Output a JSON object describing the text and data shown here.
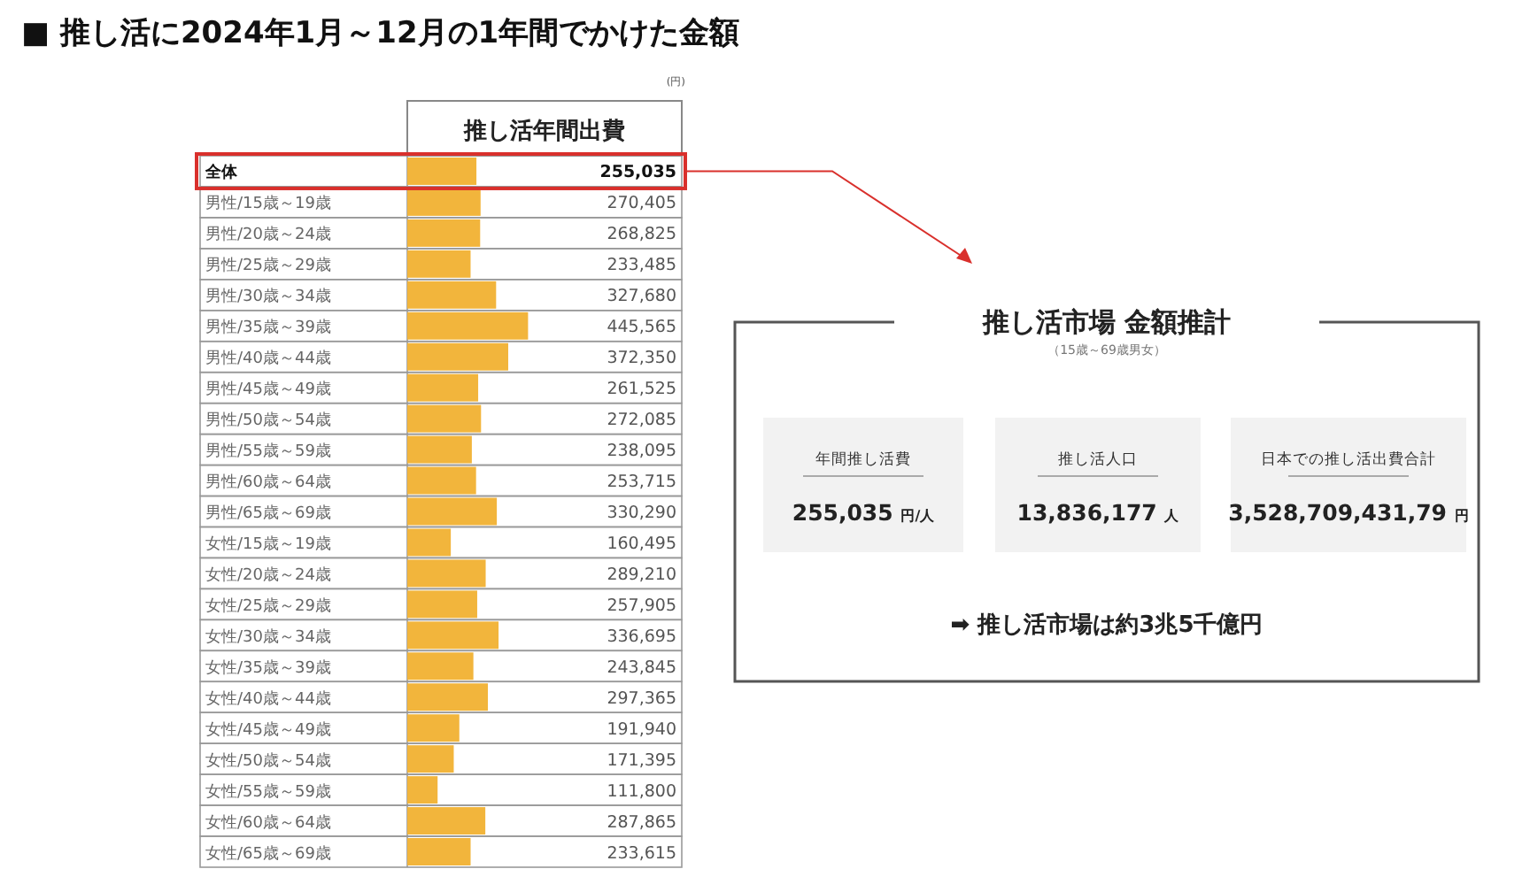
{
  "chart_data": [
    {
      "type": "bar",
      "orientation": "horizontal",
      "title": "■ 推し活に2024年1月～12月の1年間でかけた金額",
      "xlabel": "推し活年間出費",
      "annotations": [
        "(円)"
      ],
      "color": "#f2b53c",
      "value_labels": [
        "255,035",
        "270,405",
        "268,825",
        "233,485",
        "327,680",
        "445,565",
        "372,350",
        "261,525",
        "272,085",
        "238,095",
        "253,715",
        "330,290",
        "160,495",
        "289,210",
        "257,905",
        "336,695",
        "243,845",
        "297,365",
        "191,940",
        "171,395",
        "111,800",
        "287,865",
        "233,615"
      ],
      "categories": [
        "全体",
        "男性/15歳～19歳",
        "男性/20歳～24歳",
        "男性/25歳～29歳",
        "男性/30歳～34歳",
        "男性/35歳～39歳",
        "男性/40歳～44歳",
        "男性/45歳～49歳",
        "男性/50歳～54歳",
        "男性/55歳～59歳",
        "男性/60歳～64歳",
        "男性/65歳～69歳",
        "女性/15歳～19歳",
        "女性/20歳～24歳",
        "女性/25歳～29歳",
        "女性/30歳～34歳",
        "女性/35歳～39歳",
        "女性/40歳～44歳",
        "女性/45歳～49歳",
        "女性/50歳～54歳",
        "女性/55歳～59歳",
        "女性/60歳～64歳",
        "女性/65歳～69歳"
      ],
      "values": [
        255035,
        270405,
        268825,
        233485,
        327680,
        445565,
        372350,
        261525,
        272085,
        238095,
        253715,
        330290,
        160495,
        289210,
        257905,
        336695,
        243845,
        297365,
        191940,
        171395,
        111800,
        287865,
        233615
      ]
    },
    {
      "type": "other",
      "title": "推し活市場 金額推計",
      "subtitle": "（15歳～69歳男女）",
      "annotations": [
        "年間推し活費",
        "255,035 円/人",
        "推し活人口",
        "13,836,177 人",
        "日本での推し活出費合計",
        "3,528,709,431,79 円",
        "➡ 推し活市場は約3兆5千億円"
      ]
    }
  ]
}
